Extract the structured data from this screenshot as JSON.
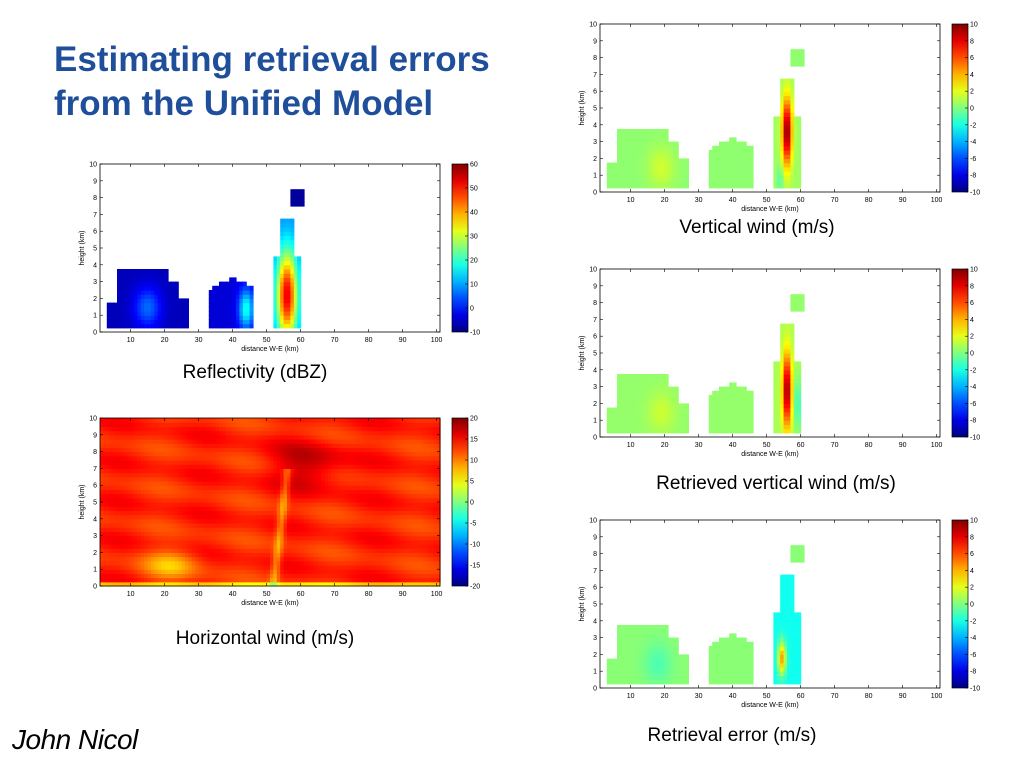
{
  "slide": {
    "title_line1": "Estimating retrieval errors",
    "title_line2": "from the Unified Model",
    "author": "John Nicol"
  },
  "colors": {
    "title": "#1f4e9a",
    "colormap": "jet"
  },
  "chart_data": [
    {
      "id": "reflectivity",
      "type": "heatmap",
      "caption": "Reflectivity (dBZ)",
      "xlabel": "distance W-E (km)",
      "ylabel": "height (km)",
      "xlim": [
        1,
        101
      ],
      "ylim": [
        0,
        10
      ],
      "xticks": [
        "10",
        "20",
        "30",
        "40",
        "50",
        "60",
        "70",
        "80",
        "90",
        "100"
      ],
      "yticks": [
        "0",
        "1",
        "2",
        "3",
        "4",
        "5",
        "6",
        "7",
        "8",
        "9",
        "10"
      ],
      "colorbar": {
        "min": -10,
        "max": 60,
        "ticks": [
          "-10",
          "0",
          "10",
          "20",
          "30",
          "40",
          "50",
          "60"
        ]
      },
      "field": "reflectivity"
    },
    {
      "id": "horizontal-wind",
      "type": "heatmap",
      "caption": "Horizontal wind (m/s)",
      "xlabel": "distance W-E (km)",
      "ylabel": "height (km)",
      "xlim": [
        1,
        101
      ],
      "ylim": [
        0,
        10
      ],
      "xticks": [
        "10",
        "20",
        "30",
        "40",
        "50",
        "60",
        "70",
        "80",
        "90",
        "100"
      ],
      "yticks": [
        "0",
        "1",
        "2",
        "3",
        "4",
        "5",
        "6",
        "7",
        "8",
        "9",
        "10"
      ],
      "colorbar": {
        "min": -20,
        "max": 20,
        "ticks": [
          "-20",
          "-15",
          "-10",
          "-5",
          "0",
          "5",
          "10",
          "15",
          "20"
        ]
      },
      "field": "horizontal_wind"
    },
    {
      "id": "vertical-wind",
      "type": "heatmap",
      "caption": "Vertical wind (m/s)",
      "xlabel": "distance W-E (km)",
      "ylabel": "height (km)",
      "xlim": [
        1,
        101
      ],
      "ylim": [
        0,
        10
      ],
      "xticks": [
        "10",
        "20",
        "30",
        "40",
        "50",
        "60",
        "70",
        "80",
        "90",
        "100"
      ],
      "yticks": [
        "0",
        "1",
        "2",
        "3",
        "4",
        "5",
        "6",
        "7",
        "8",
        "9",
        "10"
      ],
      "colorbar": {
        "min": -10,
        "max": 10,
        "ticks": [
          "-10",
          "-8",
          "-6",
          "-4",
          "-2",
          "0",
          "2",
          "4",
          "6",
          "8",
          "10"
        ]
      },
      "field": "vertical_wind"
    },
    {
      "id": "retrieved-vertical-wind",
      "type": "heatmap",
      "caption": "Retrieved vertical wind (m/s)",
      "xlabel": "distance W-E (km)",
      "ylabel": "height (km)",
      "xlim": [
        1,
        101
      ],
      "ylim": [
        0,
        10
      ],
      "xticks": [
        "10",
        "20",
        "30",
        "40",
        "50",
        "60",
        "70",
        "80",
        "90",
        "100"
      ],
      "yticks": [
        "0",
        "1",
        "2",
        "3",
        "4",
        "5",
        "6",
        "7",
        "8",
        "9",
        "10"
      ],
      "colorbar": {
        "min": -10,
        "max": 10,
        "ticks": [
          "-10",
          "-8",
          "-6",
          "-4",
          "-2",
          "0",
          "2",
          "4",
          "6",
          "8",
          "10"
        ]
      },
      "field": "retrieved_vertical_wind"
    },
    {
      "id": "retrieval-error",
      "type": "heatmap",
      "caption": "Retrieval error (m/s)",
      "xlabel": "distance W-E (km)",
      "ylabel": "height (km)",
      "xlim": [
        1,
        101
      ],
      "ylim": [
        0,
        10
      ],
      "xticks": [
        "10",
        "20",
        "30",
        "40",
        "50",
        "60",
        "70",
        "80",
        "90",
        "100"
      ],
      "yticks": [
        "0",
        "1",
        "2",
        "3",
        "4",
        "5",
        "6",
        "7",
        "8",
        "9",
        "10"
      ],
      "colorbar": {
        "min": -10,
        "max": 10,
        "ticks": [
          "-10",
          "-8",
          "-6",
          "-4",
          "-2",
          "0",
          "2",
          "4",
          "6",
          "8",
          "10"
        ]
      },
      "field": "retrieval_error"
    }
  ]
}
